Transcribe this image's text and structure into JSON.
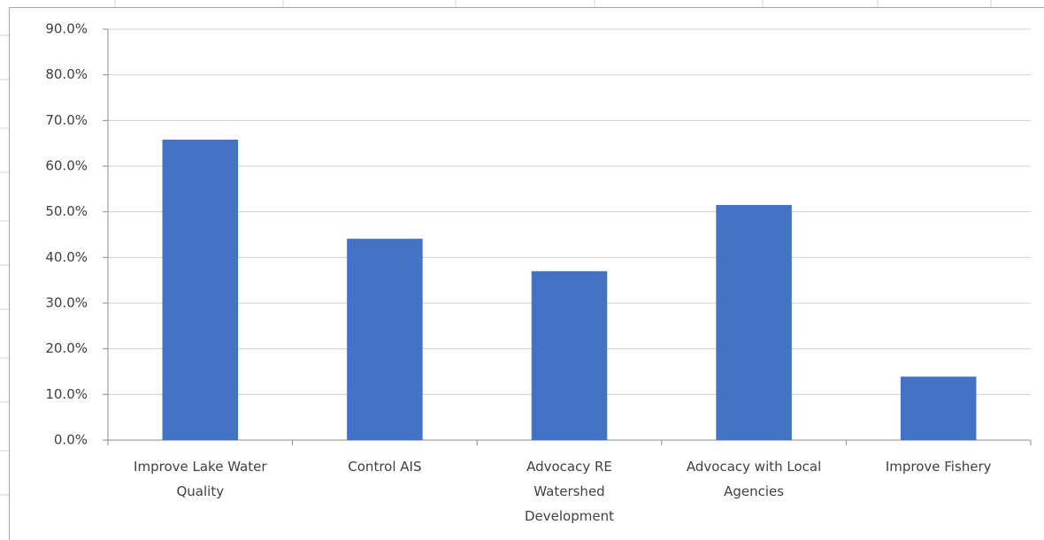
{
  "chart_data": {
    "type": "bar",
    "categories": [
      "Improve Lake Water Quality",
      "Control AIS",
      "Advocacy RE Watershed Development",
      "Advocacy with Local Agencies",
      "Improve Fishery"
    ],
    "values": [
      65.8,
      44.1,
      37.0,
      51.5,
      13.9
    ],
    "color": "#4472c4",
    "ylim": [
      0,
      90
    ],
    "yticks": [
      {
        "value": 0,
        "label": "0.0%"
      },
      {
        "value": 10,
        "label": "10.0%"
      },
      {
        "value": 20,
        "label": "20.0%"
      },
      {
        "value": 30,
        "label": "30.0%"
      },
      {
        "value": 40,
        "label": "40.0%"
      },
      {
        "value": 50,
        "label": "50.0%"
      },
      {
        "value": 60,
        "label": "60.0%"
      },
      {
        "value": 70,
        "label": "70.0%"
      },
      {
        "value": 80,
        "label": "80.0%"
      },
      {
        "value": 90,
        "label": "90.0%"
      }
    ],
    "grid": true
  }
}
